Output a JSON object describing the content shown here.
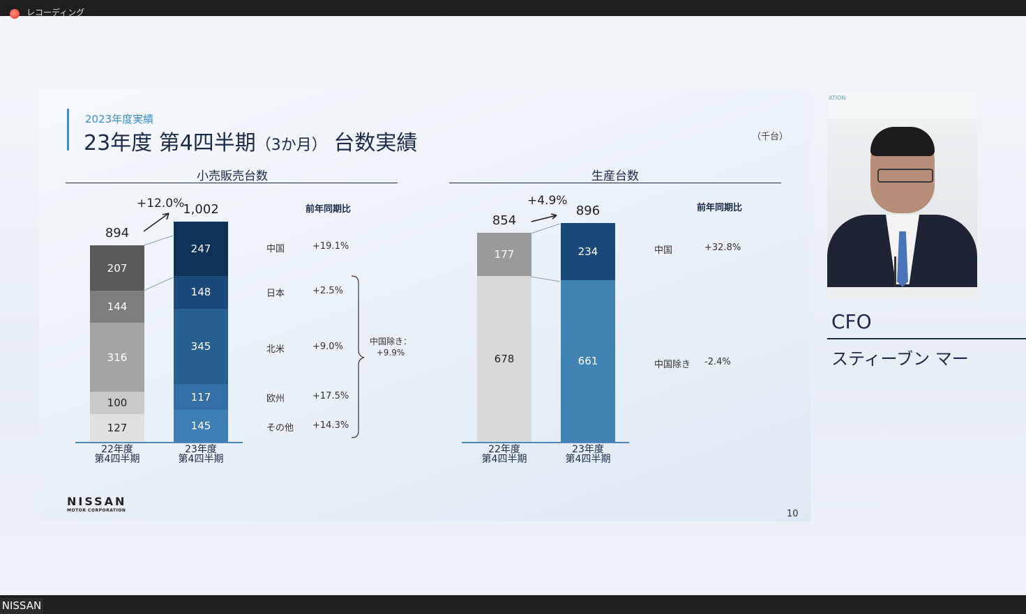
{
  "window": {
    "recording_label": "レコーディング",
    "participant_name": "NISSAN"
  },
  "slide": {
    "subtitle": "2023年度実績",
    "title_main": "23年度 第4四半期",
    "title_paren": "（3か月）",
    "title_tail": "台数実績",
    "unit": "（千台）",
    "page_number": "10",
    "logo": {
      "main": "NISSAN",
      "sub": "MOTOR CORPORATION"
    }
  },
  "chart_data": [
    {
      "type": "bar",
      "stacked": true,
      "title": "小売販売台数",
      "categories": [
        "22年度\n第4四半期",
        "23年度\n第4四半期"
      ],
      "totals": [
        "894",
        "1,002"
      ],
      "growth": "+12.0%",
      "yoy_header": "前年同期比",
      "series": [
        {
          "name": "中国",
          "values": [
            207,
            247
          ],
          "yoy": "+19.1%"
        },
        {
          "name": "日本",
          "values": [
            144,
            148
          ],
          "yoy": "+2.5%"
        },
        {
          "name": "北米",
          "values": [
            316,
            345
          ],
          "yoy": "+9.0%"
        },
        {
          "name": "欧州",
          "values": [
            100,
            117
          ],
          "yoy": "+17.5%"
        },
        {
          "name": "その他",
          "values": [
            127,
            145
          ],
          "yoy": "+14.3%"
        }
      ],
      "note": "中国除き：\n+9.9%",
      "colors_prev": [
        "#5a5a5a",
        "#7d7d7d",
        "#a4a4a4",
        "#c9c9c9",
        "#e1e1e1"
      ],
      "colors_curr": [
        "#0f3259",
        "#1b4a7a",
        "#285f93",
        "#336ea4",
        "#3d7fb4"
      ]
    },
    {
      "type": "bar",
      "stacked": true,
      "title": "生産台数",
      "categories": [
        "22年度\n第4四半期",
        "23年度\n第4四半期"
      ],
      "totals": [
        "854",
        "896"
      ],
      "growth": "+4.9%",
      "yoy_header": "前年同期比",
      "series": [
        {
          "name": "中国",
          "values": [
            177,
            234
          ],
          "yoy": "+32.8%"
        },
        {
          "name": "中国除き",
          "values": [
            678,
            661
          ],
          "yoy": "-2.4%"
        }
      ],
      "colors_prev": [
        "#9a9a9a",
        "#d9d9d9"
      ],
      "colors_curr": [
        "#1b4a7a",
        "#3f82b3"
      ]
    }
  ],
  "speaker": {
    "role": "CFO",
    "name": "スティーブン マー",
    "background_text": "ATION"
  }
}
